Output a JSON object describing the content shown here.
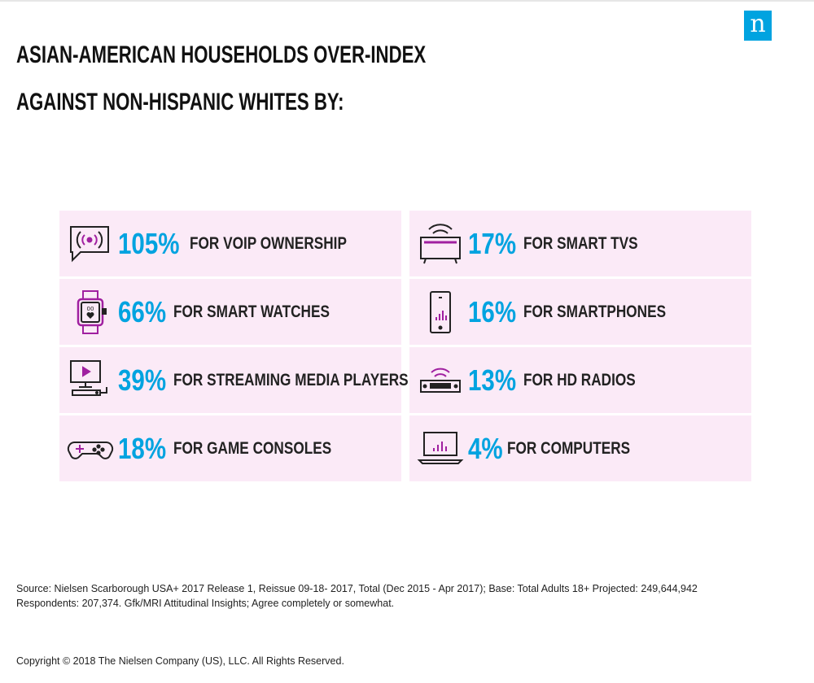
{
  "brand": {
    "logo_letter": "n",
    "logo_color": "#00a3e0"
  },
  "title": {
    "line1": "ASIAN-AMERICAN HOUSEHOLDS OVER-INDEX",
    "line2": "AGAINST NON-HISPANIC WHITES BY:"
  },
  "colors": {
    "accent": "#00a3e0",
    "card_bg": "#fbeaf7",
    "icon_magenta": "#a020a0"
  },
  "stats": [
    {
      "icon": "voip-speech-bubble-icon",
      "pct": "105%",
      "label": "FOR VOIP OWNERSHIP"
    },
    {
      "icon": "smart-watch-icon",
      "pct": "66%",
      "label": "FOR SMART WATCHES"
    },
    {
      "icon": "streaming-player-icon",
      "pct": "39%",
      "label": "FOR STREAMING MEDIA PLAYERS"
    },
    {
      "icon": "game-controller-icon",
      "pct": "18%",
      "label": "FOR GAME CONSOLES"
    },
    {
      "icon": "smart-tv-icon",
      "pct": "17%",
      "label": "FOR SMART TVS"
    },
    {
      "icon": "smartphone-icon",
      "pct": "16%",
      "label": "FOR SMARTPHONES"
    },
    {
      "icon": "hd-radio-icon",
      "pct": "13%",
      "label": "FOR HD RADIOS"
    },
    {
      "icon": "laptop-icon",
      "pct": "4%",
      "label": "FOR COMPUTERS"
    }
  ],
  "footer": {
    "source_line1": "Source: Nielsen Scarborough USA+ 2017 Release 1, Reissue 09-18- 2017, Total (Dec 2015 - Apr 2017); Base: Total Adults 18+ Projected: 249,644,942",
    "source_line2": "Respondents: 207,374. Gfk/MRI Attitudinal Insights; Agree completely or somewhat.",
    "copyright": "Copyright © 2018 The Nielsen Company (US), LLC. All Rights Reserved."
  }
}
